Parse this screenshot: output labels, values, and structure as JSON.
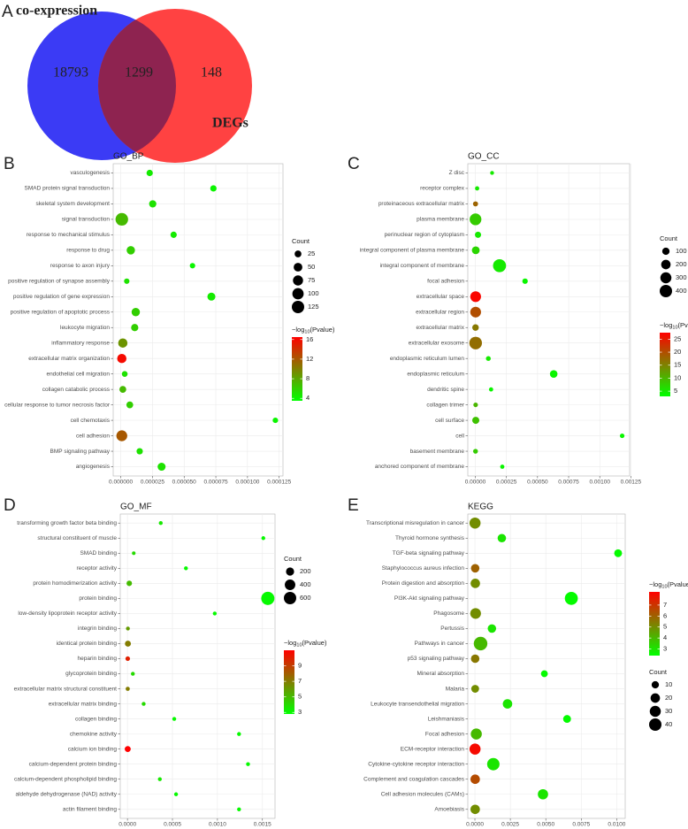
{
  "chart_data": [
    {
      "type": "venn",
      "panel": "A",
      "sets": [
        {
          "name": "co-expression",
          "color": "#3b3bf5"
        },
        {
          "name": "DEGs",
          "color": "#ff4242"
        }
      ],
      "values": [
        18793,
        1299,
        148
      ],
      "overlap_color": "#8e2350"
    },
    {
      "type": "dot",
      "panel": "B",
      "title": "GO_BP",
      "categories": [
        "vasculogenesis",
        "SMAD protein signal transduction",
        "skeletal system development",
        "signal transduction",
        "response to mechanical stimulus",
        "response to drug",
        "response to axon injury",
        "positive regulation of synapse assembly",
        "positive regulation of gene expression",
        "positive regulation of apoptotic process",
        "leukocyte migration",
        "inflammatory response",
        "extracellular matrix organization",
        "endothelial cell migration",
        "collagen catabolic process",
        "cellular response to tumor necrosis factor",
        "cell chemotaxis",
        "cell adhesion",
        "BMP signaling pathway",
        "angiogenesis"
      ],
      "values": [
        2.28e-05,
        7.31e-05,
        2.52e-05,
        8e-07,
        4.17e-05,
        7.9e-06,
        5.66e-05,
        4.7e-06,
        7.15e-05,
        1.18e-05,
        1.1e-05,
        1.6e-06,
        8e-07,
        3.1e-06,
        1.6e-06,
        7.1e-06,
        0.000122,
        8e-07,
        1.49e-05,
        3.22e-05
      ],
      "sizes": [
        20,
        20,
        30,
        130,
        20,
        45,
        12,
        12,
        40,
        45,
        30,
        60,
        60,
        15,
        25,
        25,
        12,
        90,
        20,
        40
      ],
      "color_values": [
        4.5,
        4,
        5,
        7,
        4.5,
        6,
        4,
        5,
        4.5,
        6,
        6,
        9,
        16,
        5,
        7,
        6,
        4,
        12,
        5,
        5
      ],
      "xlim": [
        -6e-06,
        0.000128
      ],
      "xticks": [
        {
          "value": 0,
          "label": "0.000000"
        },
        {
          "value": 2.5e-05,
          "label": "0.000025"
        },
        {
          "value": 5e-05,
          "label": "0.000050"
        },
        {
          "value": 7.5e-05,
          "label": "0.000075"
        },
        {
          "value": 0.0001,
          "label": "0.000100"
        },
        {
          "value": 0.000125,
          "label": "0.000125"
        }
      ],
      "size_title": "Count",
      "size_ticks": [
        25,
        50,
        75,
        100,
        125
      ],
      "color_title": {
        "prefix": "−log",
        "sub": "10",
        "suffix": "(Pvalue)"
      },
      "color_ticks": [
        4,
        8,
        12,
        16
      ],
      "clim": [
        3.5,
        16.5
      ],
      "color_low": "#00ff00",
      "color_high": "#ff0000",
      "grid": true
    },
    {
      "type": "dot",
      "panel": "C",
      "title": "GO_CC",
      "categories": [
        "Z disc",
        "receptor complex",
        "proteinaceous extracellular matrix",
        "plasma membrane",
        "perinuclear region of cytoplasm",
        "integral component of plasma membrane",
        "integral component of membrane",
        "focal adhesion",
        "extracellular space",
        "extracellular region",
        "extracellular matrix",
        "extracellular exosome",
        "endoplasmic reticulum lumen",
        "endoplasmic reticulum",
        "dendritic spine",
        "collagen trimer",
        "cell surface",
        "cell",
        "basement membrane",
        "anchored component of membrane"
      ],
      "values": [
        0.000135,
        1.5e-05,
        2e-06,
        2e-06,
        2.2e-05,
        4e-06,
        0.000195,
        0.0004,
        3e-06,
        3e-06,
        2e-06,
        3e-06,
        0.000105,
        0.00063,
        0.000127,
        3e-06,
        4e-06,
        0.00118,
        2e-06,
        0.000217
      ],
      "sizes": [
        10,
        15,
        30,
        350,
        60,
        120,
        450,
        40,
        280,
        280,
        70,
        420,
        25,
        110,
        15,
        20,
        90,
        20,
        25,
        15
      ],
      "color_values": [
        5,
        5,
        18,
        8,
        5,
        7,
        5,
        4,
        27,
        20,
        16,
        17,
        5,
        4,
        4,
        10,
        9,
        4,
        8,
        4
      ],
      "xlim": [
        -6e-05,
        0.00124
      ],
      "xticks": [
        {
          "value": 0,
          "label": "0.00000"
        },
        {
          "value": 0.00025,
          "label": "0.00025"
        },
        {
          "value": 0.0005,
          "label": "0.00050"
        },
        {
          "value": 0.00075,
          "label": "0.00075"
        },
        {
          "value": 0.001,
          "label": "0.00100"
        },
        {
          "value": 0.00125,
          "label": "0.00125"
        }
      ],
      "size_title": "Count",
      "size_ticks": [
        100,
        200,
        300,
        400
      ],
      "color_title": {
        "prefix": "−log",
        "sub": "10",
        "suffix": "(Pvalue)"
      },
      "color_ticks": [
        5,
        10,
        15,
        20,
        25
      ],
      "clim": [
        3,
        27.5
      ],
      "color_low": "#00ff00",
      "color_high": "#ff0000",
      "grid": true
    },
    {
      "type": "dot",
      "panel": "D",
      "title": "GO_MF",
      "categories": [
        "transforming growth factor beta binding",
        "structural constituent of muscle",
        "SMAD binding",
        "receptor activity",
        "protein homodimerization activity",
        "protein binding",
        "low-density lipoprotein receptor activity",
        "integrin binding",
        "identical protein binding",
        "heparin binding",
        "glycoprotein binding",
        "extracellular matrix structural constituent",
        "extracellular matrix binding",
        "collagen binding",
        "chemokine activity",
        "calcium ion binding",
        "calcium-dependent protein binding",
        "calcium-dependent phospholipid binding",
        "aldehyde dehydrogenase (NAD) activity",
        "actin filament binding"
      ],
      "values": [
        0.00037,
        0.00151,
        7e-05,
        0.00065,
        2e-05,
        0.00156,
        0.00097,
        5e-06,
        5e-06,
        3e-06,
        6e-05,
        3e-06,
        0.00018,
        0.00052,
        0.00124,
        3e-06,
        0.00134,
        0.00036,
        0.00054,
        0.00124
      ],
      "sizes": [
        15,
        15,
        10,
        15,
        60,
        700,
        15,
        15,
        80,
        30,
        15,
        20,
        15,
        15,
        15,
        80,
        15,
        15,
        15,
        15
      ],
      "color_values": [
        3.5,
        3,
        4,
        3,
        5,
        3,
        3,
        6,
        7,
        10,
        4,
        7,
        4,
        3,
        3,
        11,
        3,
        3.5,
        3,
        3
      ],
      "xlim": [
        -8e-05,
        0.00164
      ],
      "xticks": [
        {
          "value": 0,
          "label": "0.0000"
        },
        {
          "value": 0.0005,
          "label": "0.0005"
        },
        {
          "value": 0.001,
          "label": "0.0010"
        },
        {
          "value": 0.0015,
          "label": "0.0015"
        }
      ],
      "size_title": "Count",
      "size_ticks": [
        200,
        400,
        600
      ],
      "color_title": {
        "prefix": "−log",
        "sub": "10",
        "suffix": "(Pvalue)"
      },
      "color_ticks": [
        3,
        5,
        7,
        9
      ],
      "clim": [
        2.8,
        11
      ],
      "color_low": "#00ff00",
      "color_high": "#ff0000",
      "grid": true
    },
    {
      "type": "dot",
      "panel": "E",
      "title": "KEGG",
      "categories": [
        "Transcriptional misregulation in cancer",
        "Thyroid hormone synthesis",
        "TGF-beta signaling pathway",
        "Staphylococcus aureus infection",
        "Protein digestion and absorption",
        "PI3K-Akt signaling pathway",
        "Phagosome",
        "Pertussis",
        "Pathways in cancer",
        "p53 signaling pathway",
        "Mineral absorption",
        "Malaria",
        "Leukocyte transendothelial migration",
        "Leishmaniasis",
        "Focal adhesion",
        "ECM-receptor interaction",
        "Cytokine-cytokine receptor interaction",
        "Complement and coagulation cascades",
        "Cell adhesion molecules (CAMs)",
        "Amoebiasis"
      ],
      "values": [
        1e-05,
        0.0019,
        0.0101,
        2e-05,
        3e-05,
        0.0068,
        5e-05,
        0.0012,
        0.0004,
        2e-05,
        0.0049,
        2e-05,
        0.0023,
        0.0065,
        0.0001,
        1e-05,
        0.0013,
        2e-05,
        0.0048,
        2e-05
      ],
      "sizes": [
        30,
        15,
        12,
        15,
        20,
        45,
        28,
        15,
        50,
        15,
        8,
        12,
        20,
        12,
        30,
        30,
        40,
        20,
        25,
        20
      ],
      "color_values": [
        5,
        3,
        2.5,
        6,
        5,
        2.5,
        5,
        3,
        4,
        5.5,
        2.5,
        5,
        3,
        2.5,
        4,
        8,
        3,
        6.5,
        3,
        5
      ],
      "xlim": [
        -0.0005,
        0.0106
      ],
      "xticks": [
        {
          "value": 0,
          "label": "0.0000"
        },
        {
          "value": 0.0025,
          "label": "0.0025"
        },
        {
          "value": 0.005,
          "label": "0.0050"
        },
        {
          "value": 0.0075,
          "label": "0.0075"
        },
        {
          "value": 0.01,
          "label": "0.0100"
        }
      ],
      "size_title": "Count",
      "size_ticks": [
        10,
        20,
        30,
        40
      ],
      "color_title": {
        "prefix": "−log",
        "sub": "10",
        "suffix": "(Pvalue)"
      },
      "color_ticks": [
        3,
        4,
        5,
        6,
        7
      ],
      "clim": [
        2.4,
        8.2
      ],
      "color_low": "#00ff00",
      "color_high": "#ff0000",
      "grid": true
    }
  ]
}
